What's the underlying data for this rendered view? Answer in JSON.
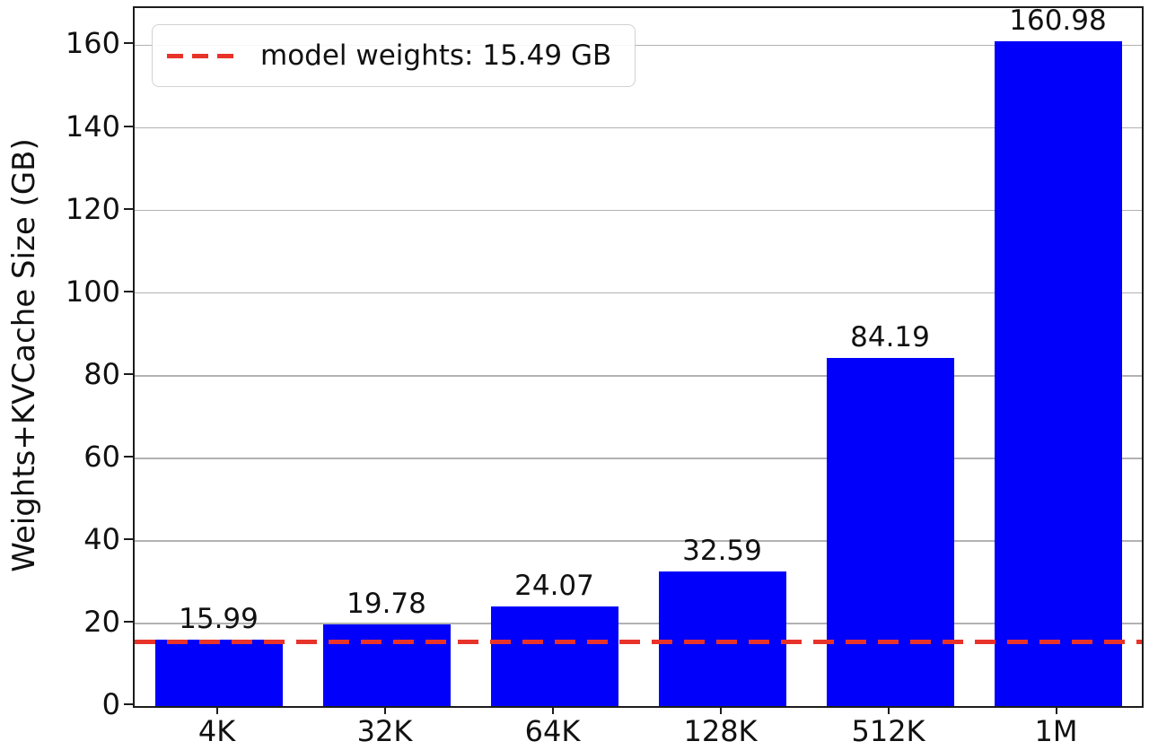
{
  "chart_data": {
    "type": "bar",
    "categories": [
      "4K",
      "32K",
      "64K",
      "128K",
      "512K",
      "1M"
    ],
    "values": [
      15.99,
      19.78,
      24.07,
      32.59,
      84.19,
      160.98
    ],
    "bar_value_labels": [
      "15.99",
      "19.78",
      "24.07",
      "32.59",
      "84.19",
      "160.98"
    ],
    "ylabel": "Weights+KVCache Size (GB)",
    "xlabel": "",
    "yticks": [
      0,
      20,
      40,
      60,
      80,
      100,
      120,
      140,
      160
    ],
    "ytick_labels": [
      "0",
      "20",
      "40",
      "60",
      "80",
      "100",
      "120",
      "140",
      "160"
    ],
    "ylim": [
      0,
      169
    ],
    "grid": "horizontal",
    "legend_position": "upper-left",
    "bar_color": "#0000fb",
    "reference_line": {
      "value": 15.49,
      "style": "dashed",
      "color": "#e8332a",
      "label": "model weights: 15.49 GB"
    }
  }
}
